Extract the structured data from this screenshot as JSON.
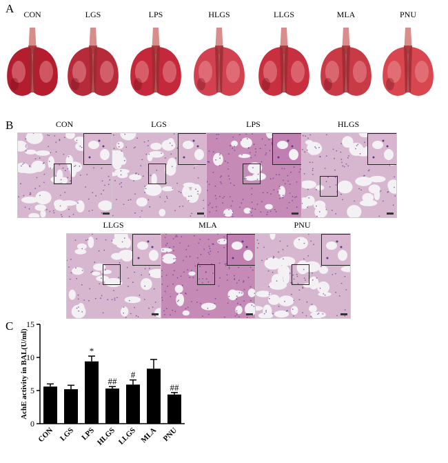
{
  "panels": {
    "a": {
      "letter": "A",
      "groups": [
        "CON",
        "LGS",
        "LPS",
        "HLGS",
        "LLGS",
        "MLA",
        "PNU"
      ]
    },
    "b": {
      "letter": "B",
      "groups_row1": [
        "CON",
        "LGS",
        "LPS",
        "HLGS"
      ],
      "groups_row2": [
        "LLGS",
        "MLA",
        "PNU"
      ]
    },
    "c": {
      "letter": "C"
    }
  },
  "chart_data": {
    "type": "bar",
    "categories": [
      "CON",
      "LGS",
      "LPS",
      "HLGS",
      "LLGS",
      "MLA",
      "PNU"
    ],
    "values": [
      5.6,
      5.2,
      9.4,
      5.3,
      5.9,
      8.3,
      4.4
    ],
    "errors": [
      0.4,
      0.6,
      0.8,
      0.3,
      0.7,
      1.4,
      0.3
    ],
    "annotations": [
      "",
      "",
      "*",
      "##",
      "#",
      "",
      "##"
    ],
    "ylabel": "AchE activity in BAL(U/ml)",
    "xlabel": "",
    "ylim": [
      0,
      15
    ],
    "yticks": [
      0,
      5,
      10,
      15
    ],
    "bar_color": "#000000"
  }
}
